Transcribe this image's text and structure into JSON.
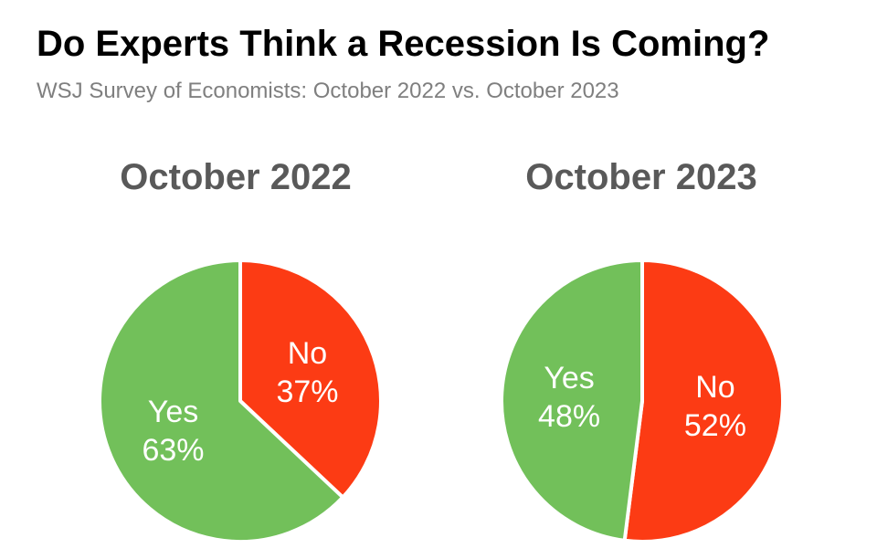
{
  "title": "Do Experts Think a Recession Is Coming?",
  "subtitle": "WSJ Survey of Economists: October 2022 vs. October 2023",
  "colors": {
    "yes": "#72c05a",
    "no": "#fc3b14",
    "title": "#000000",
    "subtitle": "#7f7f7f",
    "pie_title": "#595959"
  },
  "chart_data": [
    {
      "type": "pie",
      "title": "October 2022",
      "slices": [
        {
          "label": "No",
          "value": 37,
          "value_label": "37%",
          "color": "#fc3b14"
        },
        {
          "label": "Yes",
          "value": 63,
          "value_label": "63%",
          "color": "#72c05a"
        }
      ]
    },
    {
      "type": "pie",
      "title": "October 2023",
      "slices": [
        {
          "label": "No",
          "value": 52,
          "value_label": "52%",
          "color": "#fc3b14"
        },
        {
          "label": "Yes",
          "value": 48,
          "value_label": "48%",
          "color": "#72c05a"
        }
      ]
    }
  ]
}
